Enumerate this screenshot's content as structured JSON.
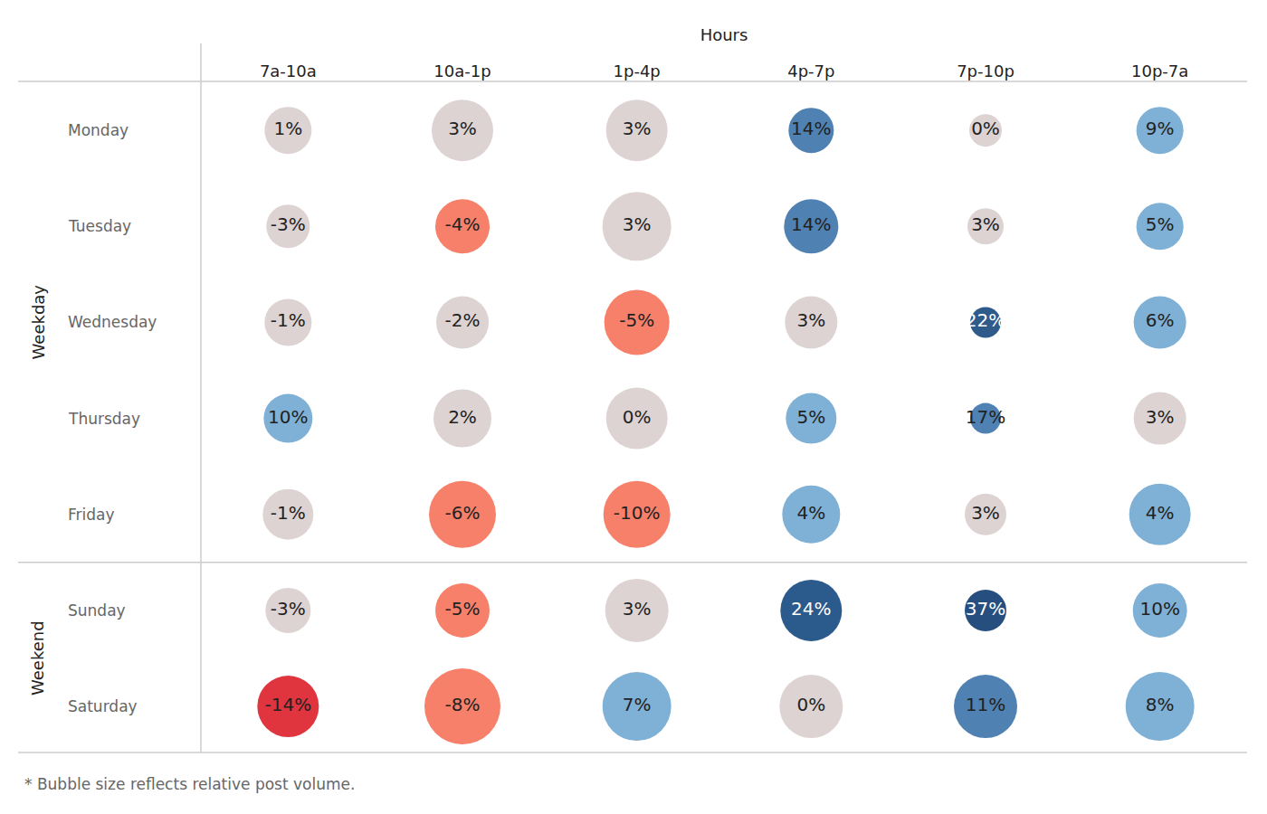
{
  "chart_data": {
    "type": "bubble",
    "x_title": "Hours",
    "categories": [
      "7a-10a",
      "10a-1p",
      "1p-4p",
      "4p-7p",
      "7p-10p",
      "10p-7a"
    ],
    "data_labels": true,
    "note": "* Bubble size reflects relative post volume.",
    "groups": [
      {
        "name": "Weekday",
        "rows": [
          {
            "name": "Monday",
            "values": [
              1,
              3,
              3,
              14,
              0,
              9
            ],
            "value_labels": [
              "1%",
              "3%",
              "3%",
              "14%",
              "0%",
              "9%"
            ],
            "sizes": [
              52,
              68,
              68,
              50,
              36,
              52
            ],
            "colors": [
              "#ddd3d2",
              "#ddd3d2",
              "#ddd3d2",
              "#4f81b2",
              "#ddd3d2",
              "#7fb0d5"
            ]
          },
          {
            "name": "Tuesday",
            "values": [
              -3,
              -4,
              3,
              14,
              3,
              5
            ],
            "value_labels": [
              "-3%",
              "-4%",
              "3%",
              "14%",
              "3%",
              "5%"
            ],
            "sizes": [
              48,
              60,
              76,
              60,
              40,
              52
            ],
            "colors": [
              "#ddd3d2",
              "#f7806a",
              "#ddd3d2",
              "#4f81b2",
              "#ddd3d2",
              "#7fb0d5"
            ]
          },
          {
            "name": "Wednesday",
            "values": [
              -1,
              -2,
              -5,
              3,
              22,
              6
            ],
            "value_labels": [
              "-1%",
              "-2%",
              "-5%",
              "3%",
              "22%",
              "6%"
            ],
            "sizes": [
              52,
              58,
              72,
              58,
              34,
              58
            ],
            "colors": [
              "#ddd3d2",
              "#ddd3d2",
              "#f7806a",
              "#ddd3d2",
              "#2f5b8b",
              "#7fb0d5"
            ]
          },
          {
            "name": "Thursday",
            "values": [
              10,
              2,
              0,
              5,
              17,
              3
            ],
            "value_labels": [
              "10%",
              "2%",
              "0%",
              "5%",
              "17%",
              "3%"
            ],
            "sizes": [
              54,
              64,
              68,
              56,
              34,
              58
            ],
            "colors": [
              "#7fb0d5",
              "#ddd3d2",
              "#ddd3d2",
              "#7fb0d5",
              "#4f81b2",
              "#ddd3d2"
            ]
          },
          {
            "name": "Friday",
            "values": [
              -1,
              -6,
              -10,
              4,
              3,
              4
            ],
            "value_labels": [
              "-1%",
              "-6%",
              "-10%",
              "4%",
              "3%",
              "4%"
            ],
            "sizes": [
              56,
              74,
              74,
              64,
              46,
              68
            ],
            "colors": [
              "#ddd3d2",
              "#f7806a",
              "#f7806a",
              "#7fb0d5",
              "#ddd3d2",
              "#7fb0d5"
            ]
          }
        ]
      },
      {
        "name": "Weekend",
        "rows": [
          {
            "name": "Sunday",
            "values": [
              -3,
              -5,
              3,
              24,
              37,
              10
            ],
            "value_labels": [
              "-3%",
              "-5%",
              "3%",
              "24%",
              "37%",
              "10%"
            ],
            "sizes": [
              50,
              60,
              70,
              68,
              46,
              60
            ],
            "colors": [
              "#ddd3d2",
              "#f7806a",
              "#ddd3d2",
              "#2b5a8c",
              "#264f7f",
              "#7fb0d5"
            ]
          },
          {
            "name": "Saturday",
            "values": [
              -14,
              -8,
              7,
              0,
              11,
              8
            ],
            "value_labels": [
              "-14%",
              "-8%",
              "7%",
              "0%",
              "11%",
              "8%"
            ],
            "sizes": [
              68,
              84,
              76,
              70,
              70,
              76
            ],
            "colors": [
              "#e0343e",
              "#f7806a",
              "#7fb0d5",
              "#ddd3d2",
              "#4f81b2",
              "#7fb0d5"
            ]
          }
        ]
      }
    ]
  }
}
